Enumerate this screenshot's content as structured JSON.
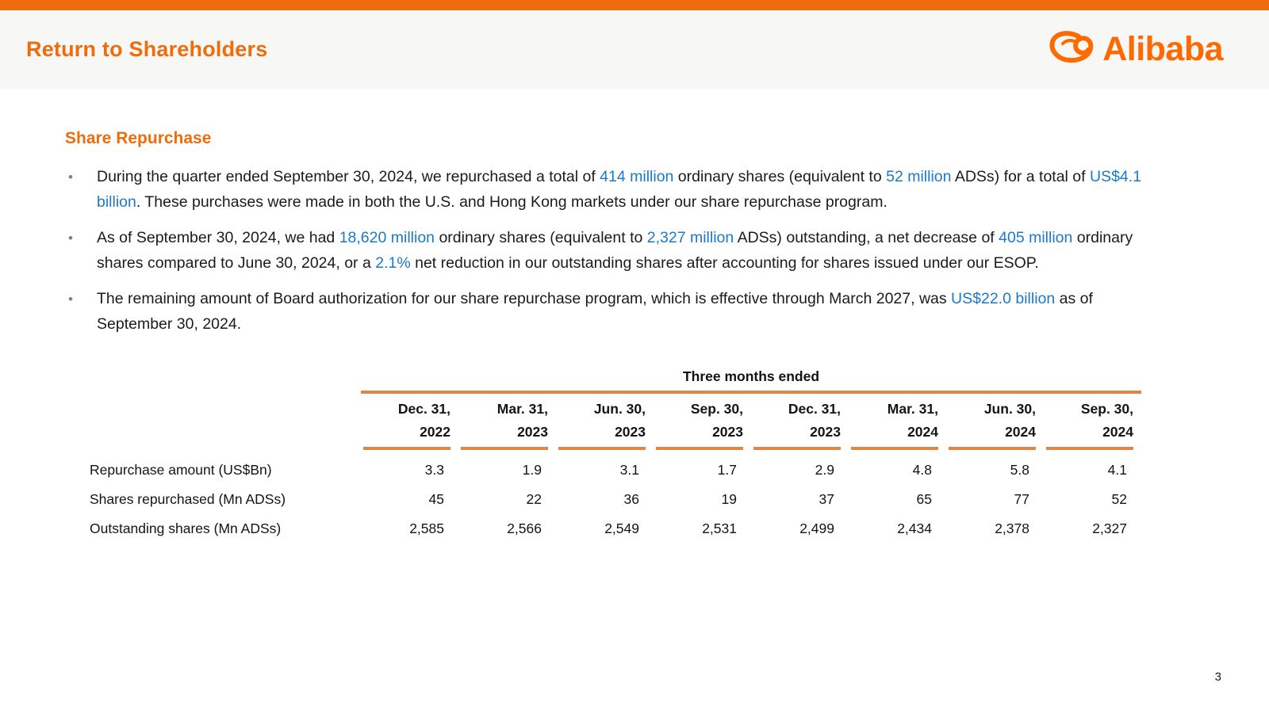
{
  "colors": {
    "accent_orange": "#ED6C0C",
    "logo_orange": "#FF6A00",
    "table_line_orange": "#E08748",
    "highlight_blue": "#1B79C8",
    "header_band_gray": "#F7F7F6"
  },
  "header": {
    "title": "Return to Shareholders",
    "logo_text": "Alibaba"
  },
  "section_heading": "Share Repurchase",
  "bullets": [
    {
      "segments": [
        {
          "text": "During the quarter ended September 30, 2024, we repurchased a total of ",
          "highlight": false
        },
        {
          "text": "414 million",
          "highlight": true
        },
        {
          "text": " ordinary shares (equivalent to ",
          "highlight": false
        },
        {
          "text": "52 million",
          "highlight": true
        },
        {
          "text": " ADSs) for a total of ",
          "highlight": false
        },
        {
          "text": "US$4.1 billion",
          "highlight": true
        },
        {
          "text": ". These purchases were made in both the U.S. and Hong Kong markets under our share repurchase program.",
          "highlight": false
        }
      ]
    },
    {
      "segments": [
        {
          "text": "As of September 30, 2024, we had ",
          "highlight": false
        },
        {
          "text": "18,620 million",
          "highlight": true
        },
        {
          "text": " ordinary shares (equivalent to ",
          "highlight": false
        },
        {
          "text": "2,327 million",
          "highlight": true
        },
        {
          "text": " ADSs) outstanding, a net decrease of ",
          "highlight": false
        },
        {
          "text": "405 million",
          "highlight": true
        },
        {
          "text": " ordinary shares compared to June 30, 2024, or a ",
          "highlight": false
        },
        {
          "text": "2.1%",
          "highlight": true
        },
        {
          "text": " net reduction in our outstanding shares after accounting for shares issued under our ESOP.",
          "highlight": false
        }
      ]
    },
    {
      "segments": [
        {
          "text": "The remaining amount of Board authorization for our share repurchase program, which is effective through March 2027, was ",
          "highlight": false
        },
        {
          "text": "US$22.0 billion",
          "highlight": true
        },
        {
          "text": " as of September 30, 2024.",
          "highlight": false
        }
      ]
    }
  ],
  "table": {
    "caption": "Three months ended",
    "columns": [
      {
        "line1": "Dec. 31,",
        "line2": "2022"
      },
      {
        "line1": "Mar. 31,",
        "line2": "2023"
      },
      {
        "line1": "Jun. 30,",
        "line2": "2023"
      },
      {
        "line1": "Sep. 30,",
        "line2": "2023"
      },
      {
        "line1": "Dec. 31,",
        "line2": "2023"
      },
      {
        "line1": "Mar. 31,",
        "line2": "2024"
      },
      {
        "line1": "Jun. 30,",
        "line2": "2024"
      },
      {
        "line1": "Sep. 30,",
        "line2": "2024"
      }
    ],
    "rows": [
      {
        "label": "Repurchase amount (US$Bn)",
        "values": [
          "3.3",
          "1.9",
          "3.1",
          "1.7",
          "2.9",
          "4.8",
          "5.8",
          "4.1"
        ]
      },
      {
        "label": "Shares repurchased (Mn ADSs)",
        "values": [
          "45",
          "22",
          "36",
          "19",
          "37",
          "65",
          "77",
          "52"
        ]
      },
      {
        "label": "Outstanding shares (Mn ADSs)",
        "values": [
          "2,585",
          "2,566",
          "2,549",
          "2,531",
          "2,499",
          "2,434",
          "2,378",
          "2,327"
        ]
      }
    ]
  },
  "footer": {
    "page_number": "3"
  }
}
